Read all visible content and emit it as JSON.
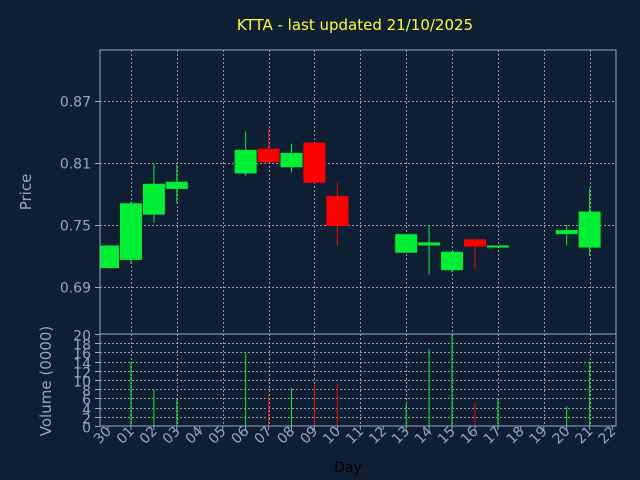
{
  "colors": {
    "background": "#0f1f33",
    "axis": "#8fa8c8",
    "grid": "#b8c4d4",
    "title": "#ffff33",
    "label": "#8fa8c8",
    "tick_label": "#8fa8c8",
    "xlabel": "#000000",
    "up": "#00ee33",
    "down": "#ff0000"
  },
  "chart_data": {
    "type": "candlestick",
    "title": "KTTA - last updated 21/10/2025",
    "xlabel": "Day",
    "categories": [
      "30",
      "01",
      "02",
      "03",
      "04",
      "05",
      "06",
      "07",
      "08",
      "09",
      "10",
      "11",
      "12",
      "13",
      "14",
      "15",
      "16",
      "17",
      "18",
      "19",
      "20",
      "21",
      "22"
    ],
    "x_range": [
      -0.35,
      22.15
    ],
    "grid": true,
    "price_panel": {
      "ylabel": "Price",
      "ylim": [
        0.644,
        0.92
      ],
      "yticks": [
        0.69,
        0.75,
        0.81,
        0.87
      ],
      "ytick_labels": [
        "0.69",
        "0.75",
        "0.81",
        "0.87"
      ],
      "candles": [
        {
          "day": "30",
          "open": 0.708,
          "close": 0.73,
          "high": 0.73,
          "low": 0.708
        },
        {
          "day": "01",
          "open": 0.716,
          "close": 0.771,
          "high": 0.773,
          "low": 0.712
        },
        {
          "day": "02",
          "open": 0.76,
          "close": 0.79,
          "high": 0.809,
          "low": 0.752
        },
        {
          "day": "03",
          "open": 0.785,
          "close": 0.792,
          "high": 0.809,
          "low": 0.771
        },
        {
          "day": "06",
          "open": 0.8,
          "close": 0.823,
          "high": 0.841,
          "low": 0.798
        },
        {
          "day": "07",
          "open": 0.824,
          "close": 0.811,
          "high": 0.843,
          "low": 0.809
        },
        {
          "day": "08",
          "open": 0.806,
          "close": 0.82,
          "high": 0.829,
          "low": 0.801
        },
        {
          "day": "09",
          "open": 0.83,
          "close": 0.791,
          "high": 0.83,
          "low": 0.791
        },
        {
          "day": "10",
          "open": 0.778,
          "close": 0.749,
          "high": 0.791,
          "low": 0.73
        },
        {
          "day": "13",
          "open": 0.723,
          "close": 0.741,
          "high": 0.741,
          "low": 0.723
        },
        {
          "day": "14",
          "open": 0.73,
          "close": 0.733,
          "high": 0.75,
          "low": 0.702
        },
        {
          "day": "15",
          "open": 0.706,
          "close": 0.724,
          "high": 0.724,
          "low": 0.704
        },
        {
          "day": "16",
          "open": 0.736,
          "close": 0.729,
          "high": 0.736,
          "low": 0.707
        },
        {
          "day": "17",
          "open": 0.728,
          "close": 0.73,
          "high": 0.73,
          "low": 0.728
        },
        {
          "day": "20",
          "open": 0.741,
          "close": 0.745,
          "high": 0.75,
          "low": 0.73
        },
        {
          "day": "21",
          "open": 0.728,
          "close": 0.763,
          "high": 0.786,
          "low": 0.72
        }
      ]
    },
    "volume_panel": {
      "ylabel": "Volume (0000)",
      "ylim": [
        0,
        20
      ],
      "yticks": [
        0,
        2,
        4,
        6,
        8,
        10,
        12,
        14,
        16,
        18,
        20
      ],
      "ytick_labels": [
        "0",
        "2",
        "4",
        "6",
        "8",
        "10",
        "12",
        "14",
        "16",
        "18",
        "20"
      ],
      "bars": [
        {
          "day": "01",
          "value": 13.8,
          "direction": "up"
        },
        {
          "day": "02",
          "value": 7.8,
          "direction": "up"
        },
        {
          "day": "03",
          "value": 5.8,
          "direction": "up"
        },
        {
          "day": "06",
          "value": 15.8,
          "direction": "up"
        },
        {
          "day": "07",
          "value": 7.0,
          "direction": "down"
        },
        {
          "day": "08",
          "value": 8.2,
          "direction": "up"
        },
        {
          "day": "09",
          "value": 9.0,
          "direction": "down"
        },
        {
          "day": "10",
          "value": 9.2,
          "direction": "down"
        },
        {
          "day": "13",
          "value": 4.8,
          "direction": "up"
        },
        {
          "day": "14",
          "value": 16.8,
          "direction": "up"
        },
        {
          "day": "15",
          "value": 19.8,
          "direction": "up"
        },
        {
          "day": "16",
          "value": 5.2,
          "direction": "down"
        },
        {
          "day": "17",
          "value": 5.8,
          "direction": "up"
        },
        {
          "day": "20",
          "value": 4.2,
          "direction": "up"
        },
        {
          "day": "21",
          "value": 13.8,
          "direction": "up"
        }
      ]
    }
  }
}
